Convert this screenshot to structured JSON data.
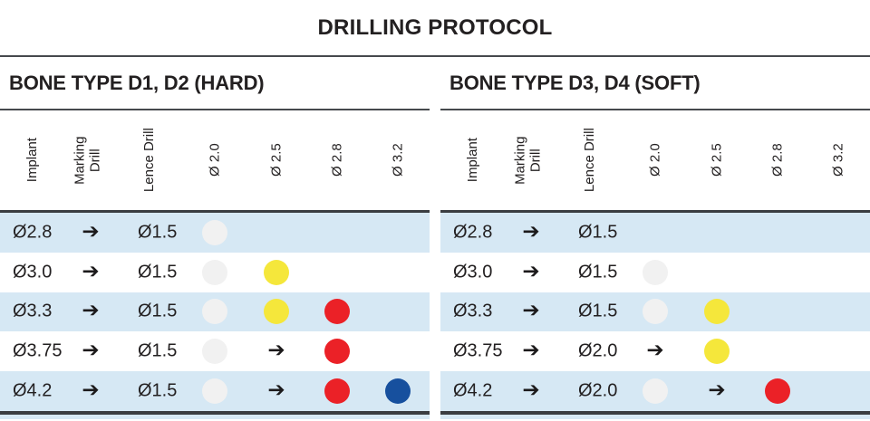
{
  "title": "DRILLING PROTOCOL",
  "arrow_glyph": "➔",
  "colors": {
    "row_highlight": "#d6e8f4",
    "gray": "#f1f1f1",
    "yellow": "#f5e73b",
    "red": "#eb2127",
    "blue": "#17509e",
    "text": "#232021"
  },
  "column_keys": [
    "implant",
    "marking",
    "lence",
    "d20",
    "d25",
    "d28",
    "d32"
  ],
  "tables": [
    {
      "title": "BONE TYPE D1, D2 (HARD)",
      "columns": {
        "implant": "Implant",
        "marking": "Marking Drill",
        "lence": "Lence Drill",
        "d20": "Ø 2.0",
        "d25": "Ø 2.5",
        "d28": "Ø 2.8",
        "d32": "Ø 3.2"
      },
      "rows": [
        {
          "implant": "Ø2.8",
          "marking": "arrow",
          "lence": "Ø1.5",
          "d20": "gray",
          "d25": null,
          "d28": null,
          "d32": null
        },
        {
          "implant": "Ø3.0",
          "marking": "arrow",
          "lence": "Ø1.5",
          "d20": "gray",
          "d25": "yellow",
          "d28": null,
          "d32": null
        },
        {
          "implant": "Ø3.3",
          "marking": "arrow",
          "lence": "Ø1.5",
          "d20": "gray",
          "d25": "yellow",
          "d28": "red",
          "d32": null
        },
        {
          "implant": "Ø3.75",
          "marking": "arrow",
          "lence": "Ø1.5",
          "d20": "gray",
          "d25": "arrow",
          "d28": "red",
          "d32": null
        },
        {
          "implant": "Ø4.2",
          "marking": "arrow",
          "lence": "Ø1.5",
          "d20": "gray",
          "d25": "arrow",
          "d28": "red",
          "d32": "blue"
        }
      ]
    },
    {
      "title": "BONE TYPE D3, D4 (SOFT)",
      "columns": {
        "implant": "Implant",
        "marking": "Marking Drill",
        "lence": "Lence Drill",
        "d20": "Ø 2.0",
        "d25": "Ø 2.5",
        "d28": "Ø 2.8",
        "d32": "Ø 3.2"
      },
      "rows": [
        {
          "implant": "Ø2.8",
          "marking": "arrow",
          "lence": "Ø1.5",
          "d20": null,
          "d25": null,
          "d28": null,
          "d32": null
        },
        {
          "implant": "Ø3.0",
          "marking": "arrow",
          "lence": "Ø1.5",
          "d20": "gray",
          "d25": null,
          "d28": null,
          "d32": null
        },
        {
          "implant": "Ø3.3",
          "marking": "arrow",
          "lence": "Ø1.5",
          "d20": "gray",
          "d25": "yellow",
          "d28": null,
          "d32": null
        },
        {
          "implant": "Ø3.75",
          "marking": "arrow",
          "lence": "Ø2.0",
          "d20": "arrow",
          "d25": "yellow",
          "d28": null,
          "d32": null
        },
        {
          "implant": "Ø4.2",
          "marking": "arrow",
          "lence": "Ø2.0",
          "d20": "gray",
          "d25": "arrow",
          "d28": "red",
          "d32": null
        }
      ]
    }
  ]
}
